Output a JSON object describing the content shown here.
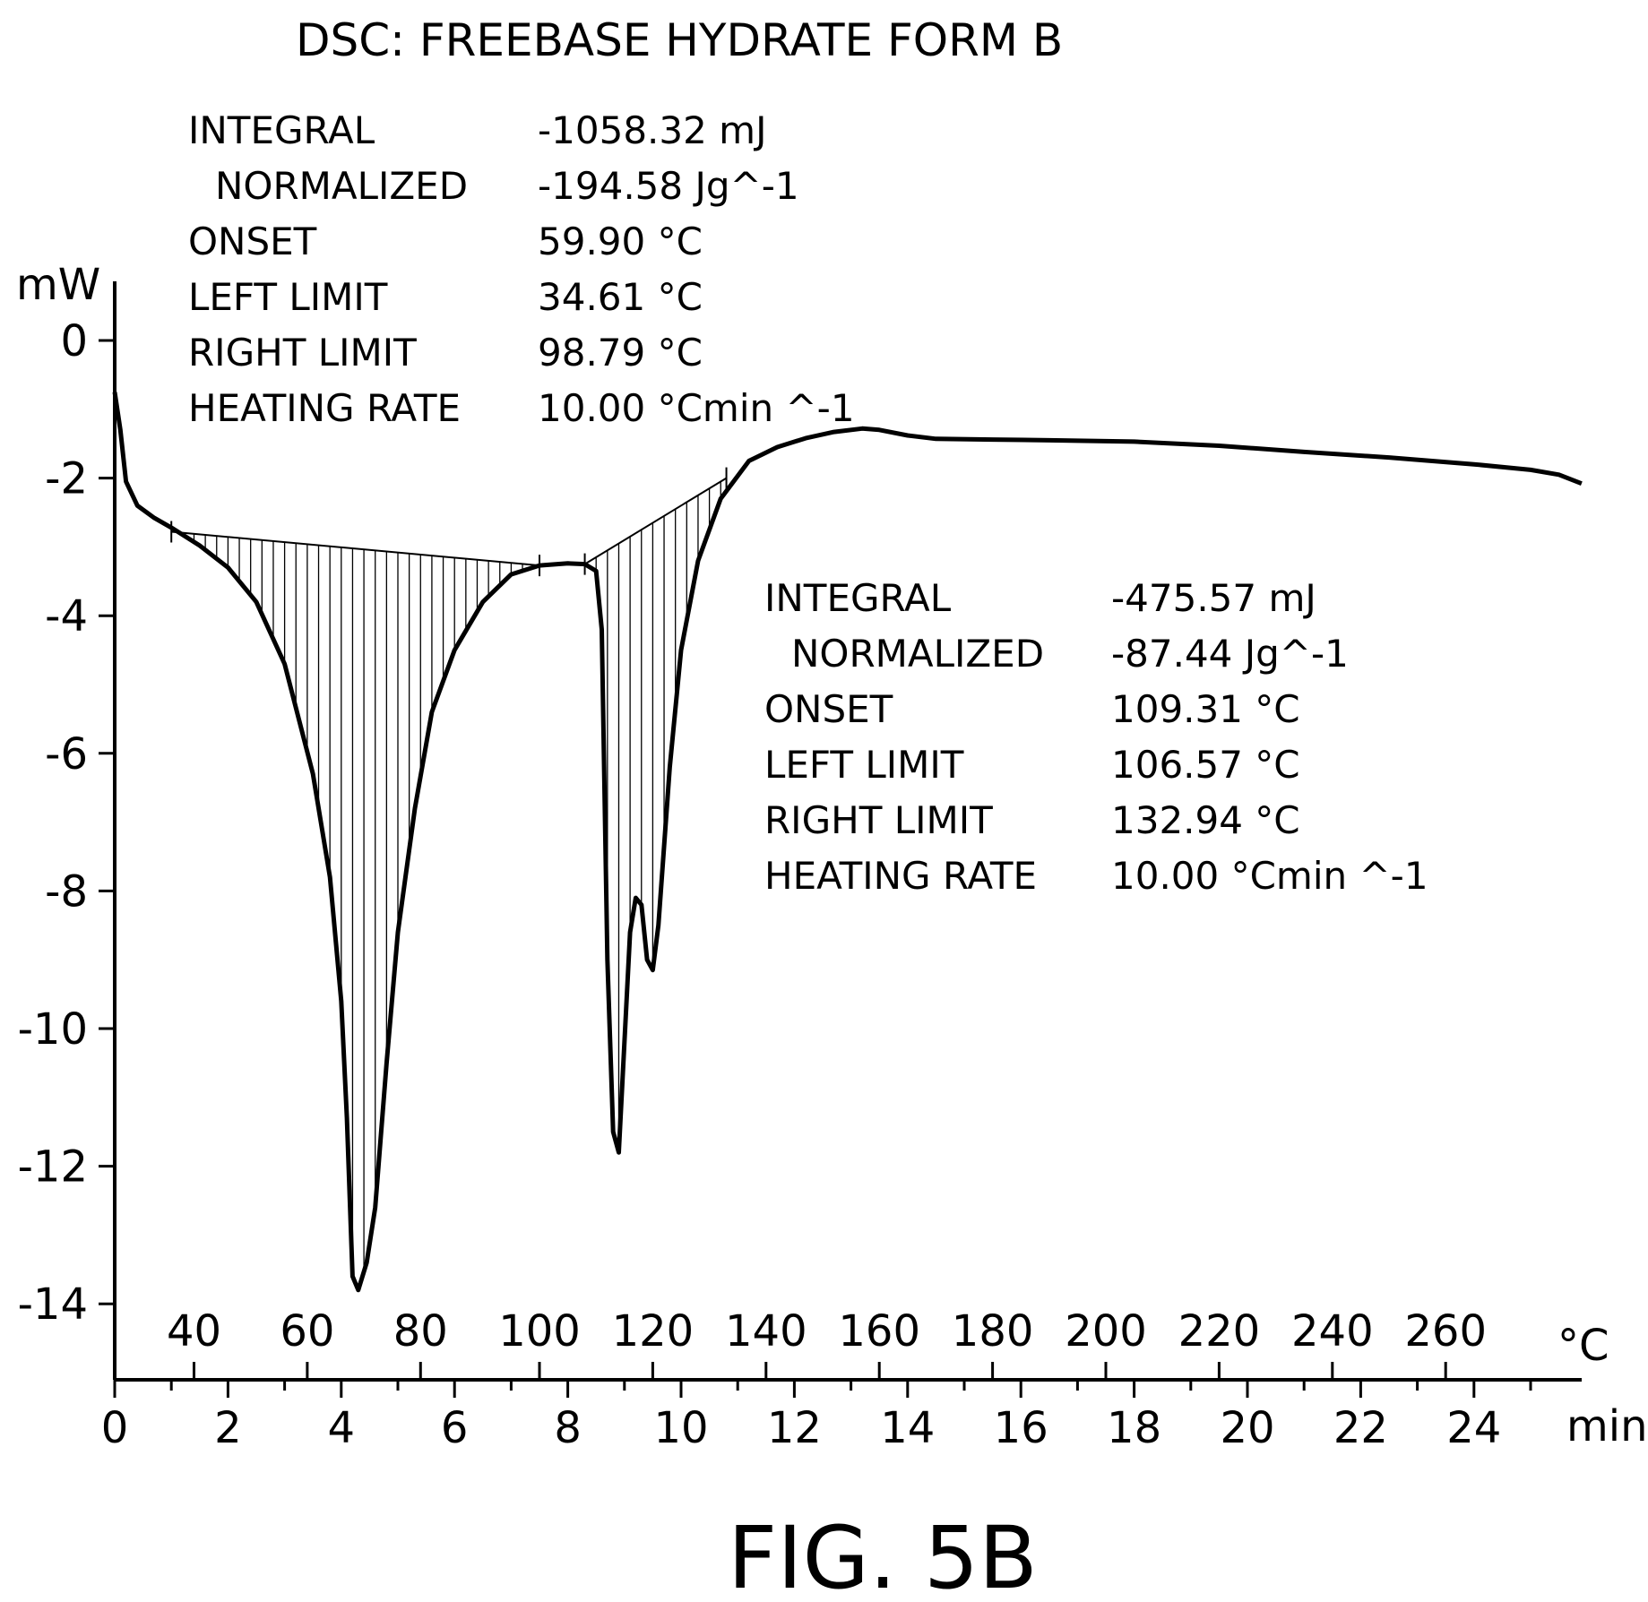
{
  "chart_data": {
    "type": "line",
    "title": "DSC: FREEBASE HYDRATE FORM B",
    "ylabel": "mW",
    "xlabel": "min",
    "x2label": "°C",
    "ylim": [
      -15.2,
      0.8
    ],
    "xlim": [
      0,
      26
    ],
    "y_ticks": [
      0,
      -2,
      -4,
      -6,
      -8,
      -10,
      -12,
      -14
    ],
    "x_ticks": [
      0,
      2,
      4,
      6,
      8,
      10,
      12,
      14,
      16,
      18,
      20,
      22,
      24
    ],
    "temp_ticks": [
      {
        "label": "40",
        "t": 1.4
      },
      {
        "label": "60",
        "t": 3.4
      },
      {
        "label": "80",
        "t": 5.4
      },
      {
        "label": "100",
        "t": 7.5
      },
      {
        "label": "120",
        "t": 9.5
      },
      {
        "label": "140",
        "t": 11.5
      },
      {
        "label": "160",
        "t": 13.5
      },
      {
        "label": "180",
        "t": 15.5
      },
      {
        "label": "200",
        "t": 17.5
      },
      {
        "label": "220",
        "t": 19.5
      },
      {
        "label": "240",
        "t": 21.5
      },
      {
        "label": "260",
        "t": 23.5
      }
    ],
    "grid": false,
    "series": [
      {
        "values": [
          [
            0.0,
            -0.75
          ],
          [
            0.1,
            -1.3
          ],
          [
            0.2,
            -2.05
          ],
          [
            0.4,
            -2.4
          ],
          [
            0.7,
            -2.58
          ],
          [
            1.0,
            -2.72
          ],
          [
            1.5,
            -2.98
          ],
          [
            2.0,
            -3.3
          ],
          [
            2.5,
            -3.8
          ],
          [
            3.0,
            -4.7
          ],
          [
            3.5,
            -6.3
          ],
          [
            3.8,
            -7.8
          ],
          [
            4.0,
            -9.6
          ],
          [
            4.1,
            -11.3
          ],
          [
            4.2,
            -13.6
          ],
          [
            4.3,
            -13.8
          ],
          [
            4.45,
            -13.4
          ],
          [
            4.6,
            -12.6
          ],
          [
            4.8,
            -10.5
          ],
          [
            5.0,
            -8.6
          ],
          [
            5.3,
            -6.8
          ],
          [
            5.6,
            -5.4
          ],
          [
            6.0,
            -4.5
          ],
          [
            6.5,
            -3.8
          ],
          [
            7.0,
            -3.4
          ],
          [
            7.5,
            -3.27
          ],
          [
            8.0,
            -3.24
          ],
          [
            8.3,
            -3.25
          ],
          [
            8.5,
            -3.35
          ],
          [
            8.6,
            -4.2
          ],
          [
            8.7,
            -9.0
          ],
          [
            8.8,
            -11.5
          ],
          [
            8.9,
            -11.8
          ],
          [
            9.0,
            -10.2
          ],
          [
            9.1,
            -8.6
          ],
          [
            9.2,
            -8.1
          ],
          [
            9.3,
            -8.2
          ],
          [
            9.4,
            -9.0
          ],
          [
            9.5,
            -9.15
          ],
          [
            9.6,
            -8.5
          ],
          [
            9.8,
            -6.2
          ],
          [
            10.0,
            -4.5
          ],
          [
            10.3,
            -3.2
          ],
          [
            10.7,
            -2.3
          ],
          [
            11.2,
            -1.75
          ],
          [
            11.7,
            -1.55
          ],
          [
            12.2,
            -1.42
          ],
          [
            12.7,
            -1.33
          ],
          [
            13.2,
            -1.28
          ],
          [
            13.5,
            -1.3
          ],
          [
            14.0,
            -1.38
          ],
          [
            14.5,
            -1.43
          ],
          [
            15.5,
            -1.44
          ],
          [
            16.5,
            -1.45
          ],
          [
            18.0,
            -1.47
          ],
          [
            19.5,
            -1.53
          ],
          [
            21.0,
            -1.62
          ],
          [
            22.5,
            -1.7
          ],
          [
            24.0,
            -1.8
          ],
          [
            25.0,
            -1.88
          ],
          [
            25.5,
            -1.95
          ],
          [
            25.9,
            -2.08
          ]
        ]
      }
    ],
    "peaks": [
      {
        "integral_label": "INTEGRAL",
        "integral": "-1058.32 mJ",
        "normalized_label": "NORMALIZED",
        "normalized": "-194.58 Jg^-1",
        "onset_label": "ONSET",
        "onset": "59.90 °C",
        "left_limit_label": "LEFT LIMIT",
        "left_limit": "34.61 °C",
        "right_limit_label": "RIGHT LIMIT",
        "right_limit": "98.79 °C",
        "heating_rate_label": "HEATING RATE",
        "heating_rate": "10.00 °Cmin ^-1",
        "baseline": [
          [
            1.0,
            -2.78
          ],
          [
            7.5,
            -3.27
          ]
        ]
      },
      {
        "integral_label": "INTEGRAL",
        "integral": "-475.57 mJ",
        "normalized_label": "NORMALIZED",
        "normalized": "-87.44 Jg^-1",
        "onset_label": "ONSET",
        "onset": "109.31 °C",
        "left_limit_label": "LEFT LIMIT",
        "left_limit": "106.57 °C",
        "right_limit_label": "RIGHT LIMIT",
        "right_limit": "132.94 °C",
        "heating_rate_label": "HEATING RATE",
        "heating_rate": "10.00 °Cmin ^-1",
        "baseline": [
          [
            8.3,
            -3.25
          ],
          [
            10.8,
            -2.0
          ]
        ]
      }
    ]
  },
  "figure_label": "FIG. 5B"
}
